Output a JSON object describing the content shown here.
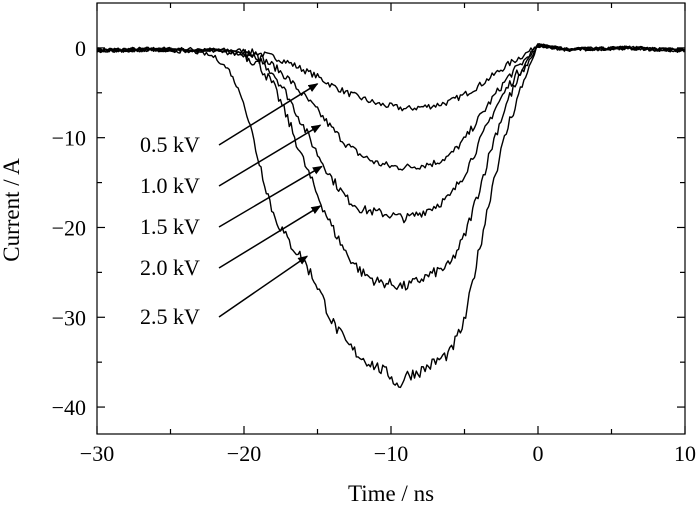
{
  "chart_data": {
    "type": "line",
    "xlabel": "Time / ns",
    "ylabel": "Current / A",
    "xlim": [
      -30,
      10
    ],
    "ylim": [
      -43,
      5
    ],
    "x_ticks": [
      -30,
      -20,
      -10,
      0,
      10
    ],
    "y_ticks": [
      0,
      -10,
      -20,
      -30,
      -40
    ],
    "x_tick_labels": [
      "−30",
      "−20",
      "−10",
      "0",
      "10"
    ],
    "y_tick_labels": [
      "0",
      "−10",
      "−20",
      "−30",
      "−40"
    ],
    "grid": false,
    "series": [
      {
        "name": "0.5 kV",
        "x": [
          -30,
          -26,
          -22,
          -20,
          -19,
          -18,
          -17,
          -16,
          -15,
          -14,
          -13,
          -12,
          -11,
          -10,
          -9,
          -8,
          -7,
          -6,
          -5,
          -4,
          -3,
          -2,
          -1,
          0,
          2,
          6,
          10
        ],
        "y": [
          -0.2,
          -0.1,
          -0.2,
          -0.3,
          -0.6,
          -1.0,
          -1.6,
          -2.4,
          -3.2,
          -4.2,
          -5.0,
          -5.6,
          -6.2,
          -6.5,
          -6.8,
          -6.6,
          -6.4,
          -6.0,
          -5.2,
          -4.2,
          -3.0,
          -1.8,
          -0.8,
          0.3,
          -0.2,
          0,
          -0.3
        ]
      },
      {
        "name": "1.0 kV",
        "x": [
          -30,
          -26,
          -22,
          -20,
          -19,
          -18,
          -17,
          -16,
          -15,
          -14,
          -13,
          -12,
          -11,
          -10,
          -9,
          -8,
          -7,
          -6,
          -5,
          -4,
          -3,
          -2,
          -1,
          0,
          2,
          6,
          10
        ],
        "y": [
          -0.3,
          -0.2,
          -0.3,
          -0.5,
          -1.0,
          -2.0,
          -3.4,
          -5.2,
          -7.0,
          -9.0,
          -10.8,
          -12.0,
          -12.8,
          -13.2,
          -13.3,
          -13.1,
          -12.8,
          -12.0,
          -10.2,
          -7.8,
          -5.4,
          -3.2,
          -1.5,
          0.3,
          -0.2,
          0,
          -0.3
        ]
      },
      {
        "name": "1.5 kV",
        "x": [
          -30,
          -26,
          -22,
          -20,
          -19,
          -18,
          -17,
          -16,
          -15,
          -14,
          -13,
          -12,
          -11,
          -10,
          -9,
          -8,
          -7,
          -6,
          -5,
          -4,
          -3,
          -2,
          -1,
          0,
          2,
          6,
          10
        ],
        "y": [
          -0.3,
          -0.2,
          -0.3,
          -0.6,
          -1.2,
          -2.8,
          -5.4,
          -8.6,
          -11.8,
          -14.6,
          -16.8,
          -18.0,
          -18.3,
          -18.6,
          -19.0,
          -18.4,
          -17.6,
          -16.6,
          -14.0,
          -10.6,
          -7.0,
          -4.2,
          -2.0,
          0.3,
          -0.2,
          0,
          -0.3
        ]
      },
      {
        "name": "2.0 kV",
        "x": [
          -30,
          -26,
          -22,
          -20,
          -19,
          -18,
          -17,
          -16,
          -15,
          -14,
          -13,
          -12,
          -11,
          -10,
          -9,
          -8,
          -7,
          -6,
          -5,
          -4,
          -3,
          -2,
          -1,
          0,
          2,
          6,
          10
        ],
        "y": [
          -0.3,
          -0.2,
          -0.4,
          -0.8,
          -1.8,
          -4.2,
          -8.0,
          -12.4,
          -16.4,
          -20.0,
          -23.0,
          -25.0,
          -26.0,
          -26.3,
          -26.6,
          -25.8,
          -25.0,
          -24.2,
          -21.0,
          -15.8,
          -10.2,
          -5.6,
          -2.6,
          0.3,
          -0.2,
          0,
          -0.3
        ]
      },
      {
        "name": "2.5 kV",
        "x": [
          -30,
          -26,
          -23,
          -22,
          -21,
          -20,
          -19,
          -18,
          -17,
          -16,
          -15,
          -14,
          -13,
          -12,
          -11,
          -10,
          -9.5,
          -9,
          -8,
          -7,
          -6,
          -5,
          -4,
          -3,
          -2,
          -1,
          0,
          2,
          6,
          10
        ],
        "y": [
          -0.3,
          -0.2,
          -0.5,
          -1.0,
          -2.5,
          -6.0,
          -12.5,
          -18.5,
          -21.5,
          -23.5,
          -26.5,
          -30.5,
          -33.0,
          -34.5,
          -35.5,
          -36.5,
          -37.8,
          -36.5,
          -36.0,
          -35.0,
          -34.0,
          -30.5,
          -22.5,
          -14.5,
          -8.5,
          -3.8,
          0.3,
          -0.2,
          0,
          -0.3
        ]
      }
    ],
    "annotations": [
      {
        "text": "0.5 kV",
        "series": "0.5 kV",
        "arrow_to": [
          -15.0,
          -4.0
        ]
      },
      {
        "text": "1.0 kV",
        "series": "1.0 kV",
        "arrow_to": [
          -14.8,
          -8.6
        ]
      },
      {
        "text": "1.5 kV",
        "series": "1.5 kV",
        "arrow_to": [
          -14.7,
          -13.2
        ]
      },
      {
        "text": "2.0 kV",
        "series": "2.0 kV",
        "arrow_to": [
          -14.8,
          -17.6
        ]
      },
      {
        "text": "2.5 kV",
        "series": "2.5 kV",
        "arrow_to": [
          -15.7,
          -23.2
        ]
      }
    ]
  }
}
